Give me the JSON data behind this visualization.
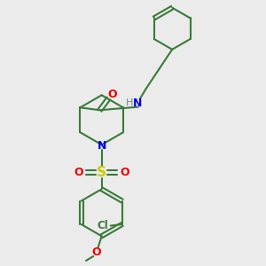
{
  "bg": "#ebebeb",
  "bond_color": "#3a7a3a",
  "N_color": "#0000ee",
  "O_color": "#ee0000",
  "S_color": "#cccc00",
  "Cl_color": "#3a7a3a",
  "H_color": "#6a8a8a",
  "lw": 1.5,
  "figsize": [
    3.0,
    3.0
  ],
  "dpi": 100,
  "xlim": [
    0,
    10
  ],
  "ylim": [
    0,
    10
  ]
}
